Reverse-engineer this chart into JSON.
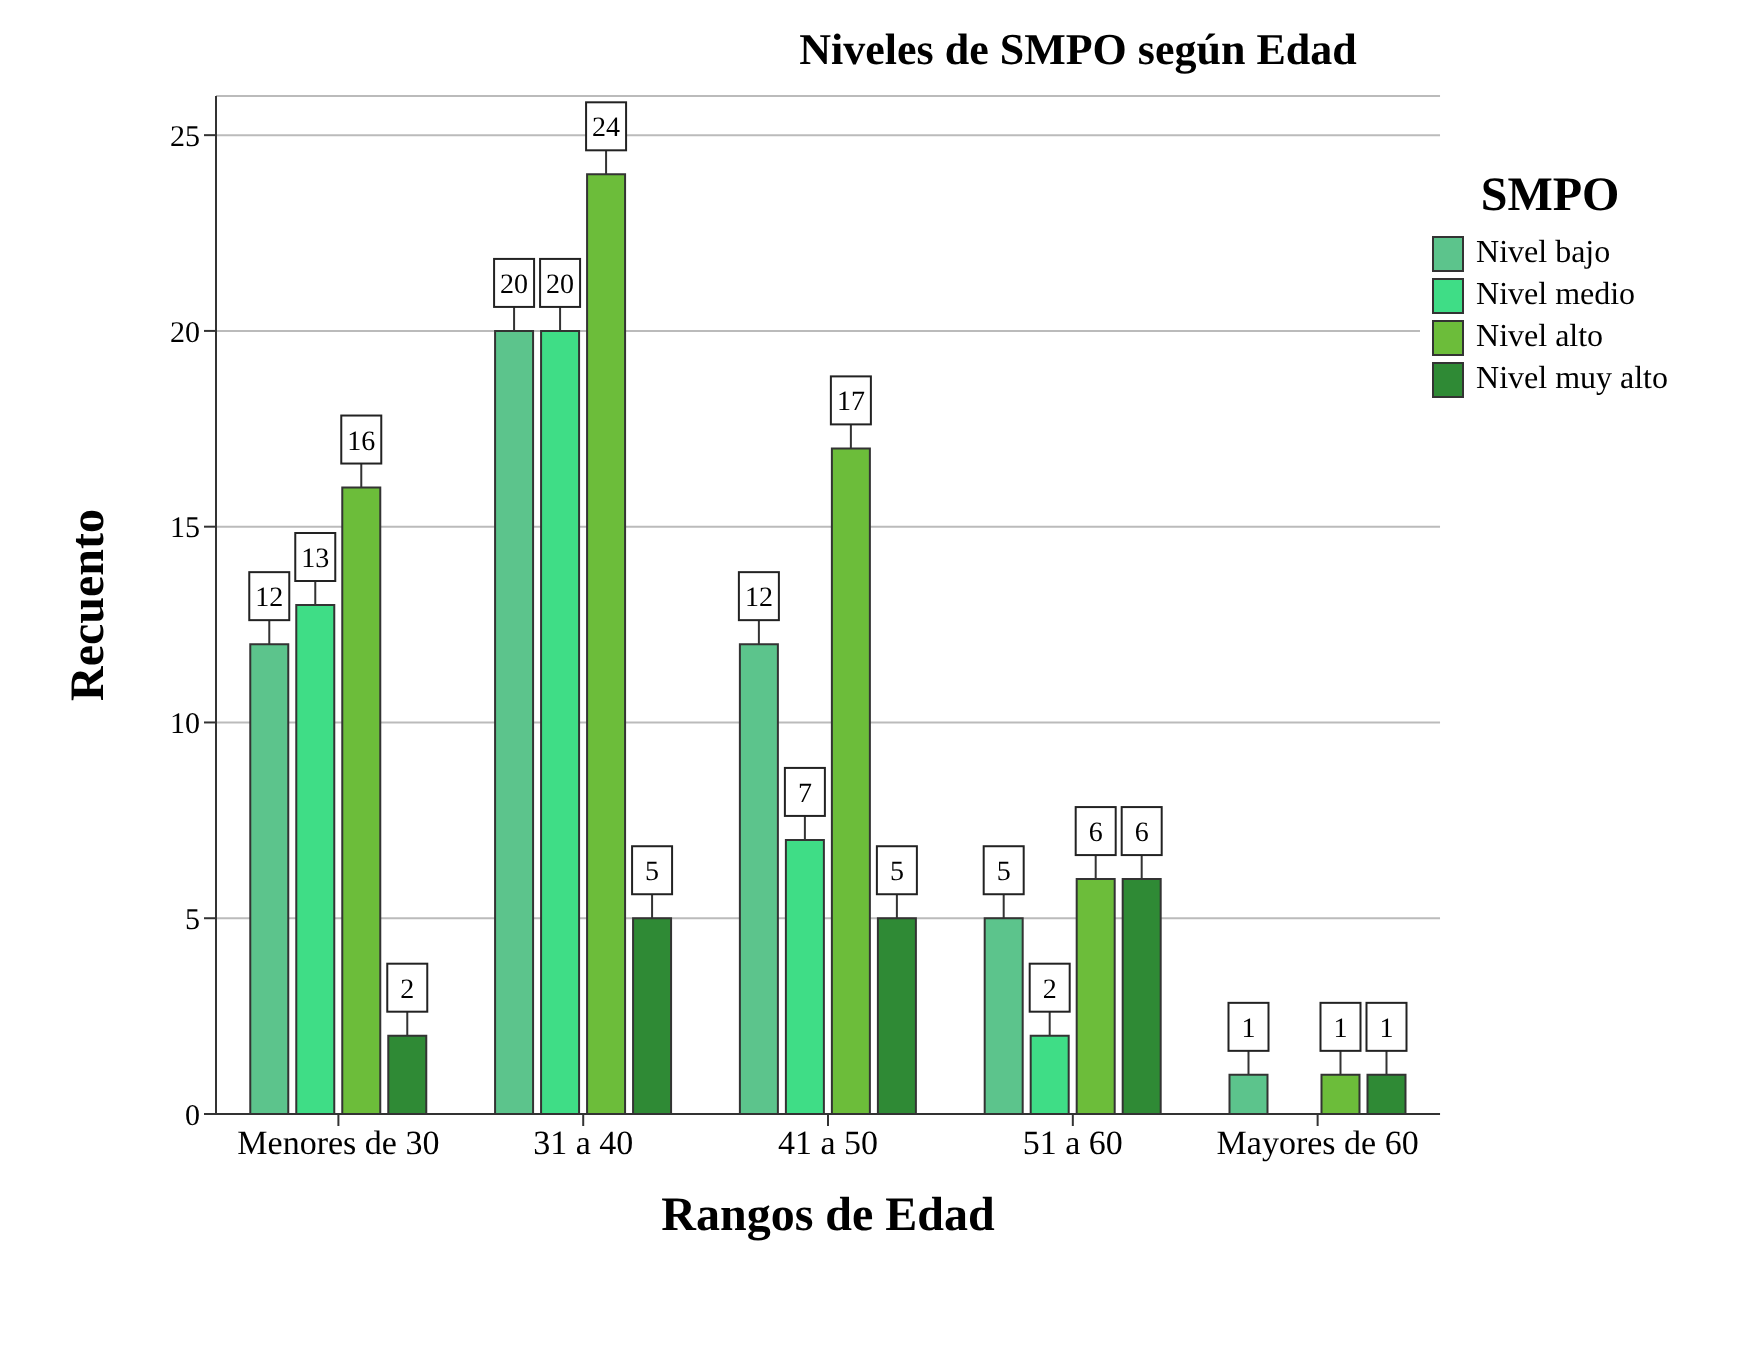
{
  "chart_data": {
    "type": "bar",
    "title": "Niveles de SMPO según Edad",
    "xlabel": "Rangos de Edad",
    "ylabel": "Recuento",
    "legend_title": "SMPO",
    "categories": [
      "Menores de 30",
      "31 a 40",
      "41 a 50",
      "51 a 60",
      "Mayores de 60"
    ],
    "series": [
      {
        "name": "Nivel bajo",
        "color": "#5cc48c",
        "values": [
          12,
          20,
          12,
          5,
          1
        ]
      },
      {
        "name": "Nivel medio",
        "color": "#3fdd86",
        "values": [
          13,
          20,
          7,
          2,
          null
        ]
      },
      {
        "name": "Nivel alto",
        "color": "#6cbd3a",
        "values": [
          16,
          24,
          17,
          6,
          1
        ]
      },
      {
        "name": "Nivel muy alto",
        "color": "#2f8a35",
        "values": [
          2,
          5,
          5,
          6,
          1
        ]
      }
    ],
    "ylim": [
      0,
      26
    ],
    "yticks": [
      0,
      5,
      10,
      15,
      20,
      25
    ],
    "grid": "y",
    "legend": "top right",
    "data_labels": true
  }
}
